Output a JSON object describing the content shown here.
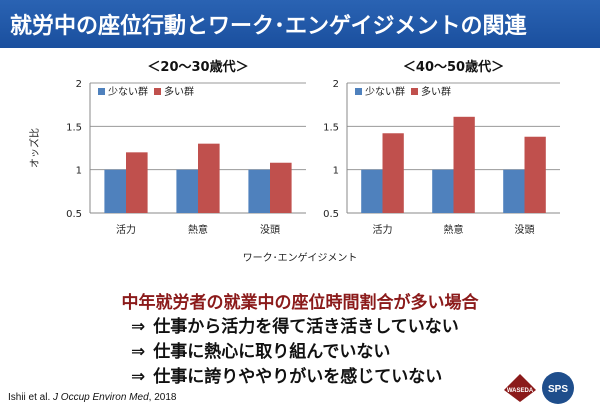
{
  "title": "就労中の座位行動とワーク･エンゲイジメントの関連",
  "ylabel": "オッズ比",
  "xlabel": "ワーク･エンゲイジメント",
  "conclusion": {
    "heading": "中年就労者の就業中の座位時間割合が多い場合",
    "arrow": "⇒",
    "points": [
      "仕事から活力を得て活き活きしていない",
      "仕事に熱心に取り組んでいない",
      "仕事に誇りややりがいを感じていない"
    ]
  },
  "citation_prefix": "Ishii et al. ",
  "citation_journal": "J Occup Environ Med",
  "citation_suffix": ", 2018",
  "logos": {
    "left": "WASEDA",
    "right": "SPS"
  },
  "colors": {
    "title_bg": "#1f57a8",
    "low_group": "#4f81bd",
    "high_group": "#c0504d",
    "heading": "#8b1a1a"
  },
  "chart_data": [
    {
      "type": "bar",
      "title": "＜20～30歳代＞",
      "categories": [
        "活力",
        "熱意",
        "没頭"
      ],
      "ylim": [
        0.5,
        2
      ],
      "yticks": [
        "0.5",
        "1",
        "1.5",
        "2"
      ],
      "legend_position": "top-left",
      "series": [
        {
          "name": "少ない群",
          "values": [
            1.0,
            1.0,
            1.0
          ]
        },
        {
          "name": "多い群",
          "values": [
            1.2,
            1.3,
            1.08
          ]
        }
      ]
    },
    {
      "type": "bar",
      "title": "＜40～50歳代＞",
      "categories": [
        "活力",
        "熱意",
        "没頭"
      ],
      "ylim": [
        0.5,
        2
      ],
      "yticks": [
        "0.5",
        "1",
        "1.5",
        "2"
      ],
      "legend_position": "top-left",
      "series": [
        {
          "name": "少ない群",
          "values": [
            1.0,
            1.0,
            1.0
          ]
        },
        {
          "name": "多い群",
          "values": [
            1.42,
            1.61,
            1.38
          ]
        }
      ]
    }
  ]
}
